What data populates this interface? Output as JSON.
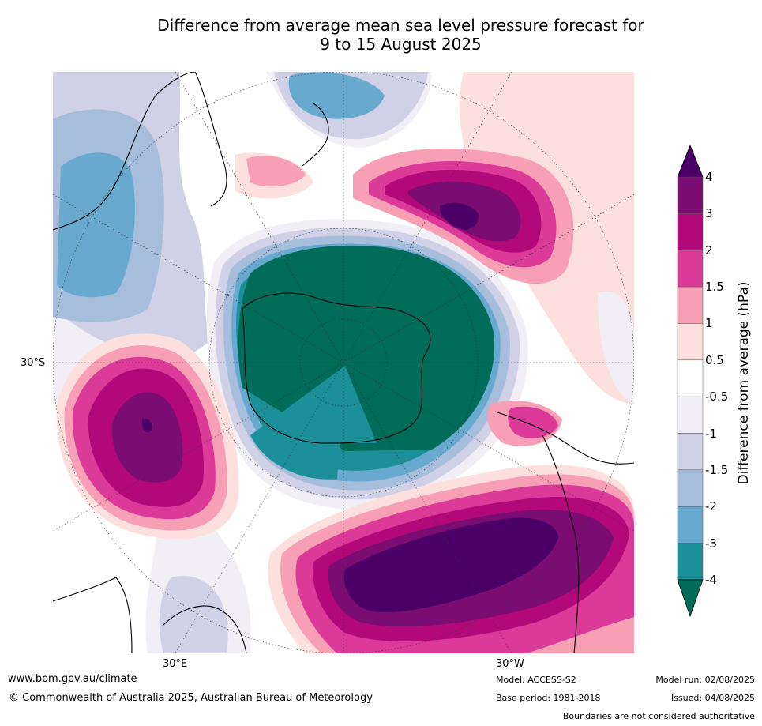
{
  "title": {
    "line1": "Difference from average mean sea level pressure forecast for",
    "line2": "9 to 15 August 2025"
  },
  "map": {
    "projection": "south polar stereographic",
    "labels": {
      "lat_30s": "30°S",
      "lon_30e": "30°E",
      "lon_30w": "30°W"
    }
  },
  "legend": {
    "title": "Difference from average (hPa)",
    "ticks": [
      "4",
      "3",
      "2",
      "1.5",
      "1",
      "0.5",
      "-0.5",
      "-1",
      "-1.5",
      "-2",
      "-3",
      "-4"
    ],
    "colors": {
      "above_4": "#4a0066",
      "3_to_4": "#7a0c72",
      "2_to_3": "#b3087a",
      "1.5_to_2": "#db3a98",
      "1_to_1.5": "#f7a0b5",
      "0.5_to_1": "#fde0dd",
      "-0.5_to_0.5": "#ffffff",
      "-1_to_-0.5": "#f1eef5",
      "-1.5_to_-1": "#d0d1e6",
      "-2_to_-1.5": "#a6bddb",
      "-3_to_-2": "#67a9cf",
      "-4_to_-3": "#1c9099",
      "below_-4": "#016c59"
    }
  },
  "footer": {
    "url": "www.bom.gov.au/climate",
    "copyright": "© Commonwealth of Australia 2025, Australian Bureau of Meteorology",
    "model": "Model: ACCESS-S2",
    "base_period": "Base period: 1981-2018",
    "model_run": "Model run: 02/08/2025",
    "issued": "Issued: 04/08/2025",
    "disclaimer": "Boundaries are not considered authoritative"
  }
}
